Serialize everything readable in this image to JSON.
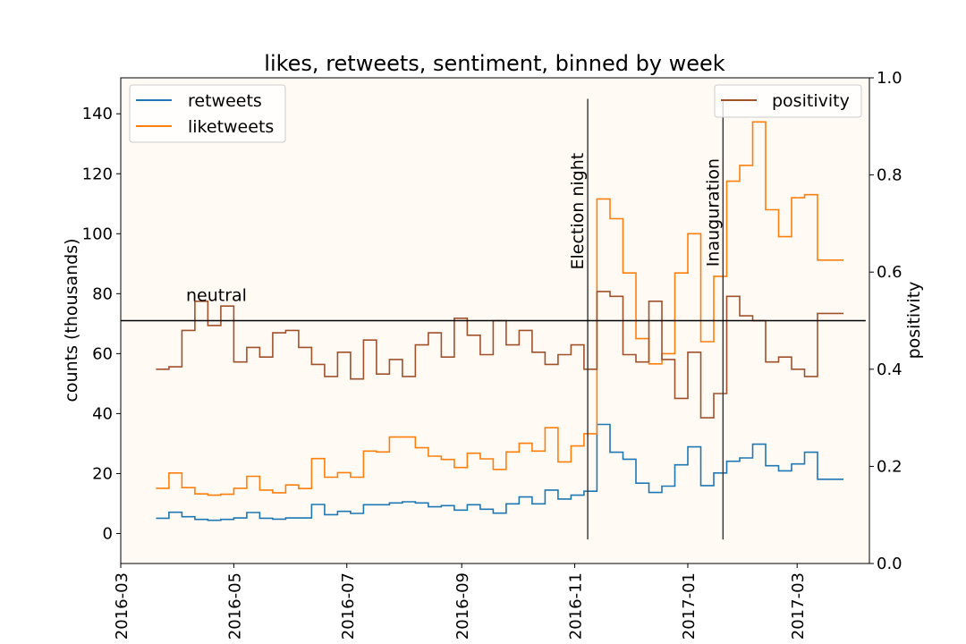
{
  "chart_data": {
    "type": "line",
    "title": "likes, retweets, sentiment, binned by week",
    "xlabel": "",
    "ylabel": "counts (thousands)",
    "y2label": "positivity",
    "xlim": [
      "2016-03-01",
      "2017-04-09"
    ],
    "ylim": [
      -10,
      152
    ],
    "y2lim": [
      0.0,
      1.0
    ],
    "yticks": [
      0,
      20,
      40,
      60,
      80,
      100,
      120,
      140
    ],
    "y2ticks": [
      "0.0",
      "0.2",
      "0.4",
      "0.6",
      "0.8",
      "1.0"
    ],
    "xticks": [
      "2016-03",
      "2016-05",
      "2016-07",
      "2016-09",
      "2016-11",
      "2017-01",
      "2017-03"
    ],
    "xtick_dates": [
      "2016-03-01",
      "2016-05-01",
      "2016-07-01",
      "2016-09-01",
      "2016-11-01",
      "2017-01-01",
      "2017-03-01"
    ],
    "grid": false,
    "left_legend": {
      "placement": "top-left",
      "entries": [
        "retweets",
        "liketweets"
      ]
    },
    "right_legend": {
      "placement": "top-right",
      "entries": [
        "positivity"
      ]
    },
    "step": "post",
    "x": [
      "2016-03-20",
      "2016-03-27",
      "2016-04-03",
      "2016-04-10",
      "2016-04-17",
      "2016-04-24",
      "2016-05-01",
      "2016-05-08",
      "2016-05-15",
      "2016-05-22",
      "2016-05-29",
      "2016-06-05",
      "2016-06-12",
      "2016-06-19",
      "2016-06-26",
      "2016-07-03",
      "2016-07-10",
      "2016-07-17",
      "2016-07-24",
      "2016-07-31",
      "2016-08-07",
      "2016-08-14",
      "2016-08-21",
      "2016-08-28",
      "2016-09-04",
      "2016-09-11",
      "2016-09-18",
      "2016-09-25",
      "2016-10-02",
      "2016-10-09",
      "2016-10-16",
      "2016-10-23",
      "2016-10-30",
      "2016-11-06",
      "2016-11-13",
      "2016-11-20",
      "2016-11-27",
      "2016-12-04",
      "2016-12-11",
      "2016-12-18",
      "2016-12-25",
      "2017-01-01",
      "2017-01-08",
      "2017-01-15",
      "2017-01-22",
      "2017-01-29",
      "2017-02-05",
      "2017-02-12",
      "2017-02-19",
      "2017-02-26",
      "2017-03-05",
      "2017-03-12",
      "2017-03-19"
    ],
    "series": [
      {
        "name": "retweets",
        "axis": "left",
        "color": "#1f77b4",
        "values": [
          5.1,
          7.1,
          5.6,
          4.7,
          4.4,
          4.7,
          5.2,
          7.0,
          5.1,
          4.8,
          5.2,
          5.2,
          9.7,
          6.3,
          7.4,
          6.7,
          9.6,
          9.6,
          10.2,
          10.6,
          10.2,
          8.9,
          9.3,
          7.8,
          9.6,
          8.1,
          6.8,
          9.9,
          12.2,
          9.9,
          14.5,
          11.5,
          12.8,
          14.1,
          36.4,
          27.1,
          24.8,
          16.8,
          13.7,
          15.8,
          22.9,
          28.9,
          16.0,
          20.2,
          24.1,
          25.2,
          29.8,
          22.6,
          20.9,
          23.2,
          27.1,
          18.1,
          18.1
        ]
      },
      {
        "name": "liketweets",
        "axis": "left",
        "color": "#ff7f0e",
        "values": [
          15.1,
          20.2,
          15.3,
          13.2,
          12.8,
          13.1,
          15.1,
          19.1,
          14.5,
          13.6,
          16.2,
          15.0,
          25.0,
          18.8,
          20.3,
          18.8,
          27.5,
          27.2,
          32.2,
          32.2,
          28.6,
          25.8,
          24.7,
          22.0,
          26.8,
          24.9,
          21.4,
          27.2,
          30.1,
          27.5,
          35.3,
          23.9,
          29.2,
          33.3,
          111.6,
          105.0,
          86.9,
          65.0,
          56.6,
          60.0,
          86.9,
          100.0,
          64.0,
          85.8,
          117.5,
          122.8,
          137.3,
          108.0,
          99.0,
          112.0,
          113.0,
          91.2,
          91.2
        ]
      },
      {
        "name": "positivity",
        "axis": "right",
        "color": "#a0522d",
        "values": [
          0.4,
          0.405,
          0.48,
          0.54,
          0.49,
          0.53,
          0.415,
          0.445,
          0.425,
          0.475,
          0.48,
          0.445,
          0.41,
          0.385,
          0.435,
          0.38,
          0.46,
          0.39,
          0.42,
          0.385,
          0.45,
          0.475,
          0.425,
          0.505,
          0.47,
          0.43,
          0.5,
          0.45,
          0.48,
          0.435,
          0.41,
          0.43,
          0.45,
          0.4,
          0.56,
          0.55,
          0.43,
          0.415,
          0.54,
          0.42,
          0.34,
          0.435,
          0.3,
          0.35,
          0.55,
          0.51,
          0.5,
          0.415,
          0.425,
          0.4,
          0.385,
          0.515,
          0.515
        ]
      }
    ],
    "annotations": [
      {
        "text": "Election night",
        "date": "2016-11-08",
        "line_from": -2,
        "line_to": 145,
        "label_y": 88,
        "rotated": true
      },
      {
        "text": "Inauguration",
        "date": "2017-01-20",
        "line_from": -2,
        "line_to": 145,
        "label_y": 89,
        "rotated": true
      },
      {
        "text": "neutral",
        "axis": "right",
        "y": 0.5,
        "from": "2016-03-01",
        "to": "2017-04-07"
      }
    ],
    "colors": {
      "plot_background": "#fffaf4",
      "reference_lines": "#000000"
    }
  }
}
